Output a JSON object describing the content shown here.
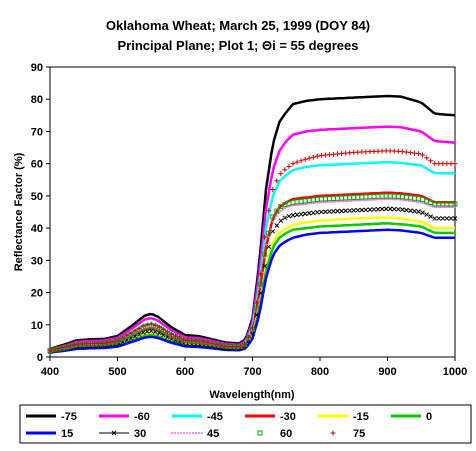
{
  "chart_data": {
    "type": "line",
    "title": "Oklahoma Wheat;  March 25, 1999 (DOY 84)",
    "subtitle": "Principal Plane; Plot 1; Θi = 55 degrees",
    "xlabel": "Wavelength(nm)",
    "ylabel": "Reflectance Factor (%)",
    "xlim": [
      400,
      1000
    ],
    "ylim": [
      0,
      90
    ],
    "xticks": [
      400,
      500,
      600,
      700,
      800,
      900,
      1000
    ],
    "yticks": [
      0,
      10,
      20,
      30,
      40,
      50,
      60,
      70,
      80,
      90
    ],
    "grid": false,
    "legend_position": "bottom",
    "x": [
      400,
      420,
      440,
      460,
      480,
      500,
      520,
      540,
      550,
      560,
      580,
      600,
      620,
      640,
      660,
      680,
      690,
      700,
      710,
      720,
      730,
      740,
      750,
      760,
      780,
      800,
      850,
      900,
      920,
      950,
      970,
      1000
    ],
    "series": [
      {
        "name": "-75",
        "color": "#000000",
        "style": "line",
        "values": [
          2.5,
          3.8,
          5.2,
          5.5,
          5.6,
          6.5,
          9.5,
          12.8,
          13.4,
          12.5,
          9.2,
          6.8,
          6.5,
          5.5,
          4.5,
          4.2,
          5.5,
          12.0,
          29.0,
          52.0,
          66.0,
          73.0,
          76.0,
          78.5,
          79.5,
          80.0,
          80.5,
          81.0,
          80.8,
          79.0,
          75.5,
          75.0
        ]
      },
      {
        "name": "-60",
        "color": "#ff00ff",
        "style": "line",
        "values": [
          2.2,
          3.4,
          4.7,
          5.0,
          5.1,
          5.9,
          8.6,
          11.6,
          12.1,
          11.3,
          8.3,
          6.1,
          5.9,
          5.0,
          4.1,
          3.8,
          5.0,
          10.8,
          26.0,
          46.0,
          58.0,
          64.0,
          67.0,
          69.0,
          70.0,
          70.5,
          71.0,
          71.5,
          71.3,
          70.0,
          67.0,
          66.5
        ]
      },
      {
        "name": "-45",
        "color": "#00ffff",
        "style": "line",
        "values": [
          2.0,
          3.0,
          4.1,
          4.3,
          4.4,
          5.1,
          7.4,
          10.0,
          10.4,
          9.7,
          7.1,
          5.3,
          5.1,
          4.3,
          3.5,
          3.3,
          4.3,
          9.3,
          22.0,
          40.0,
          50.0,
          54.5,
          56.5,
          58.0,
          59.0,
          59.5,
          60.0,
          60.5,
          60.2,
          59.5,
          57.0,
          57.0
        ]
      },
      {
        "name": "-30",
        "color": "#ff0000",
        "style": "line",
        "values": [
          1.8,
          2.6,
          3.5,
          3.7,
          3.8,
          4.4,
          6.4,
          8.6,
          9.0,
          8.4,
          6.2,
          4.6,
          4.4,
          3.7,
          3.0,
          2.8,
          3.7,
          8.0,
          19.0,
          34.0,
          43.0,
          46.5,
          48.0,
          49.0,
          49.5,
          50.0,
          50.5,
          51.0,
          50.8,
          50.0,
          48.0,
          48.0
        ]
      },
      {
        "name": "-15",
        "color": "#ffff00",
        "style": "line",
        "values": [
          1.6,
          2.2,
          2.9,
          3.1,
          3.2,
          3.7,
          5.3,
          7.1,
          7.4,
          6.9,
          5.1,
          3.8,
          3.6,
          3.1,
          2.6,
          2.4,
          3.1,
          6.7,
          15.5,
          28.0,
          35.5,
          38.5,
          40.0,
          41.0,
          41.8,
          42.3,
          43.0,
          43.3,
          43.0,
          42.0,
          40.0,
          40.0
        ]
      },
      {
        "name": "0",
        "color": "#00cc00",
        "style": "line",
        "values": [
          1.5,
          2.1,
          2.7,
          2.9,
          3.0,
          3.4,
          4.9,
          6.5,
          6.8,
          6.4,
          4.7,
          3.5,
          3.4,
          2.9,
          2.4,
          2.2,
          2.9,
          6.2,
          14.5,
          26.5,
          34.0,
          37.0,
          38.5,
          39.5,
          40.0,
          40.5,
          41.0,
          41.5,
          41.2,
          40.5,
          38.5,
          38.5
        ]
      },
      {
        "name": "15",
        "color": "#0000ff",
        "style": "line",
        "values": [
          1.4,
          1.9,
          2.5,
          2.7,
          2.8,
          3.2,
          4.6,
          6.0,
          6.3,
          5.9,
          4.4,
          3.3,
          3.1,
          2.7,
          2.2,
          2.1,
          2.7,
          5.7,
          13.0,
          24.5,
          31.5,
          34.5,
          36.0,
          37.0,
          38.0,
          38.5,
          39.0,
          39.5,
          39.3,
          38.5,
          37.0,
          37.0
        ]
      },
      {
        "name": "30",
        "color": "#000000",
        "style": "cross",
        "values": [
          1.7,
          2.4,
          3.2,
          3.4,
          3.5,
          4.0,
          5.8,
          7.8,
          8.1,
          7.6,
          5.6,
          4.1,
          3.9,
          3.3,
          2.7,
          2.5,
          3.3,
          7.2,
          17.0,
          31.0,
          39.0,
          42.0,
          43.5,
          44.0,
          44.5,
          45.0,
          45.5,
          46.0,
          45.8,
          45.0,
          43.0,
          43.0
        ]
      },
      {
        "name": "45",
        "color": "#ff66ff",
        "style": "dots",
        "values": [
          1.9,
          2.7,
          3.6,
          3.8,
          3.9,
          4.5,
          6.6,
          8.8,
          9.2,
          8.6,
          6.3,
          4.7,
          4.5,
          3.8,
          3.1,
          2.9,
          3.8,
          8.2,
          18.5,
          34.0,
          42.0,
          45.0,
          46.5,
          47.0,
          47.5,
          48.0,
          48.5,
          49.0,
          48.8,
          48.0,
          46.5,
          46.5
        ]
      },
      {
        "name": "60",
        "color": "#00aa00",
        "style": "square",
        "values": [
          2.0,
          2.8,
          3.8,
          4.0,
          4.1,
          4.8,
          7.0,
          9.3,
          9.7,
          9.1,
          6.7,
          5.0,
          4.8,
          4.0,
          3.3,
          3.1,
          4.0,
          8.6,
          19.5,
          35.0,
          43.5,
          46.5,
          47.5,
          48.0,
          48.5,
          49.0,
          49.5,
          50.0,
          49.8,
          49.0,
          47.5,
          47.5
        ]
      },
      {
        "name": "75",
        "color": "#cc0000",
        "style": "plus",
        "values": [
          2.1,
          3.0,
          4.0,
          4.2,
          4.3,
          5.0,
          7.3,
          9.8,
          10.2,
          9.5,
          7.0,
          5.2,
          5.0,
          4.2,
          3.4,
          3.2,
          4.2,
          9.0,
          22.0,
          41.0,
          52.0,
          56.5,
          58.5,
          60.0,
          61.5,
          62.5,
          63.5,
          64.0,
          63.8,
          63.0,
          60.0,
          60.0
        ]
      }
    ]
  }
}
